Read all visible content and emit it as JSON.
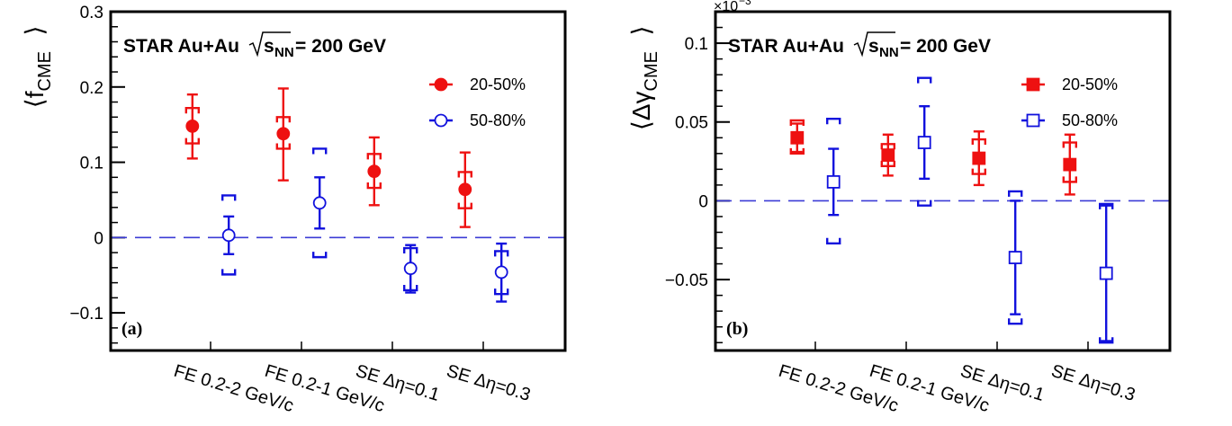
{
  "chart_data": [
    {
      "type": "scatter",
      "panel_label": "(a)",
      "header": {
        "prefix": "STAR Au+Au",
        "sqrt": "s",
        "sub": "NN",
        "suffix": " = 200 GeV"
      },
      "ylabel": {
        "main": "f",
        "sub": "CME"
      },
      "y_multiplier": "",
      "ylim": [
        -0.15,
        0.3
      ],
      "yticks": [
        {
          "v": -0.1,
          "label": "−0.1"
        },
        {
          "v": 0,
          "label": "0"
        },
        {
          "v": 0.1,
          "label": "0.1"
        },
        {
          "v": 0.2,
          "label": "0.2"
        },
        {
          "v": 0.3,
          "label": "0.3"
        }
      ],
      "categories": [
        "FE 0.2-2 GeV/c",
        "FE 0.2-1 GeV/c",
        "SE Δη=0.1",
        "SE Δη=0.3"
      ],
      "reference_line": 0,
      "legend": "top-right",
      "series": [
        {
          "name": "20-50%",
          "color": "#ee1111",
          "marker": "filled-circle",
          "offset": -0.2,
          "values": [
            0.148,
            0.138,
            0.088,
            0.064
          ],
          "stat_lo": [
            0.105,
            0.076,
            0.043,
            0.014
          ],
          "stat_hi": [
            0.19,
            0.198,
            0.133,
            0.113
          ],
          "sys_lo": [
            0.125,
            0.118,
            0.066,
            0.039
          ],
          "sys_hi": [
            0.172,
            0.16,
            0.111,
            0.087
          ]
        },
        {
          "name": "50-80%",
          "color": "#1111dd",
          "marker": "open-circle",
          "offset": 0.2,
          "values": [
            0.003,
            0.046,
            -0.041,
            -0.046
          ],
          "stat_lo": [
            -0.022,
            0.012,
            -0.073,
            -0.085
          ],
          "stat_hi": [
            0.028,
            0.08,
            -0.01,
            -0.008
          ],
          "sys_lo": [
            -0.049,
            -0.026,
            -0.07,
            -0.075
          ],
          "sys_hi": [
            0.056,
            0.118,
            -0.014,
            -0.018
          ]
        }
      ]
    },
    {
      "type": "scatter",
      "panel_label": "(b)",
      "header": {
        "prefix": "STAR Au+Au",
        "sqrt": "s",
        "sub": "NN",
        "suffix": " = 200 GeV"
      },
      "ylabel": {
        "main": "Δγ",
        "sub": "CME"
      },
      "y_multiplier": "×10",
      "y_multiplier_exp": "−3",
      "ylim": [
        -0.095,
        0.12
      ],
      "yticks": [
        {
          "v": -0.05,
          "label": "−0.05"
        },
        {
          "v": 0,
          "label": "0"
        },
        {
          "v": 0.05,
          "label": "0.05"
        },
        {
          "v": 0.1,
          "label": "0.1"
        }
      ],
      "categories": [
        "FE 0.2-2 GeV/c",
        "FE 0.2-1 GeV/c",
        "SE Δη=0.1",
        "SE Δη=0.3"
      ],
      "reference_line": 0,
      "legend": "top-right",
      "series": [
        {
          "name": "20-50%",
          "color": "#ee1111",
          "marker": "filled-square",
          "offset": -0.2,
          "values": [
            0.04,
            0.029,
            0.027,
            0.023
          ],
          "stat_lo": [
            0.031,
            0.016,
            0.01,
            0.004
          ],
          "stat_hi": [
            0.049,
            0.042,
            0.044,
            0.042
          ],
          "sys_lo": [
            0.03,
            0.022,
            0.017,
            0.012
          ],
          "sys_hi": [
            0.051,
            0.036,
            0.039,
            0.037
          ]
        },
        {
          "name": "50-80%",
          "color": "#1111dd",
          "marker": "open-square",
          "offset": 0.2,
          "values": [
            0.012,
            0.037,
            -0.036,
            -0.046
          ],
          "stat_lo": [
            -0.009,
            0.014,
            -0.072,
            -0.089
          ],
          "stat_hi": [
            0.033,
            0.06,
            0.0,
            -0.003
          ],
          "sys_lo": [
            -0.027,
            -0.003,
            -0.078,
            -0.09
          ],
          "sys_hi": [
            0.052,
            0.078,
            0.006,
            -0.002
          ]
        }
      ]
    }
  ]
}
